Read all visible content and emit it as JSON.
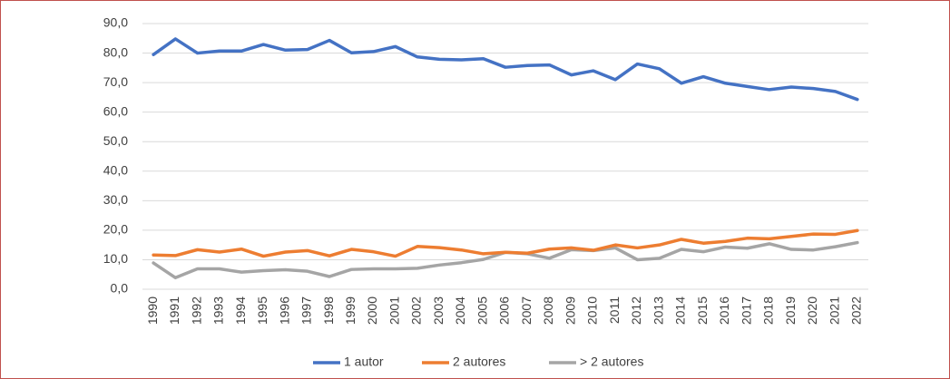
{
  "chart_data": {
    "type": "line",
    "categories": [
      "1990",
      "1991",
      "1992",
      "1993",
      "1994",
      "1995",
      "1996",
      "1997",
      "1998",
      "1999",
      "2000",
      "2001",
      "2002",
      "2003",
      "2004",
      "2005",
      "2006",
      "2007",
      "2008",
      "2009",
      "2010",
      "2011",
      "2012",
      "2013",
      "2014",
      "2015",
      "2016",
      "2017",
      "2018",
      "2019",
      "2020",
      "2021",
      "2022"
    ],
    "series": [
      {
        "name": "1 autor",
        "color": "#4472c4",
        "values": [
          79.5,
          84.8,
          80,
          80.7,
          80.7,
          82.9,
          81,
          81.2,
          84.3,
          80.1,
          80.5,
          82.2,
          78.7,
          77.9,
          77.7,
          78.1,
          75.2,
          75.8,
          76,
          72.6,
          74,
          71,
          76.3,
          74.7,
          69.8,
          72,
          69.8,
          68.7,
          67.6,
          68.5,
          68,
          67,
          64.3
        ]
      },
      {
        "name": "2 autores",
        "color": "#ed7d31",
        "values": [
          11.6,
          11.4,
          13.4,
          12.6,
          13.6,
          11.2,
          12.6,
          13.1,
          11.3,
          13.5,
          12.7,
          11.2,
          14.5,
          14.1,
          13.3,
          12,
          12.5,
          12.2,
          13.6,
          14,
          13.2,
          15,
          14,
          15,
          16.9,
          15.6,
          16.2,
          17.3,
          17.1,
          17.9,
          18.7,
          18.6,
          19.9
        ]
      },
      {
        "name": "> 2 autores",
        "color": "#a5a5a5",
        "values": [
          8.9,
          3.9,
          6.9,
          6.9,
          5.8,
          6.3,
          6.6,
          6.1,
          4.3,
          6.7,
          6.9,
          6.9,
          7.1,
          8.2,
          9,
          10.1,
          12.5,
          12,
          10.5,
          13.4,
          13.1,
          14,
          10,
          10.5,
          13.5,
          12.7,
          14.3,
          13.9,
          15.4,
          13.5,
          13.3,
          14.4,
          15.8
        ]
      }
    ],
    "ylim": [
      0,
      90
    ],
    "yticks": [
      {
        "value": 0,
        "label": "0,0"
      },
      {
        "value": 10,
        "label": "10,0"
      },
      {
        "value": 20,
        "label": "20,0"
      },
      {
        "value": 30,
        "label": "30,0"
      },
      {
        "value": 40,
        "label": "40,0"
      },
      {
        "value": 50,
        "label": "50,0"
      },
      {
        "value": 60,
        "label": "60,0"
      },
      {
        "value": 70,
        "label": "70,0"
      },
      {
        "value": 80,
        "label": "80,0"
      },
      {
        "value": 90,
        "label": "90,0"
      }
    ],
    "grid": true,
    "legend": "bottom"
  }
}
